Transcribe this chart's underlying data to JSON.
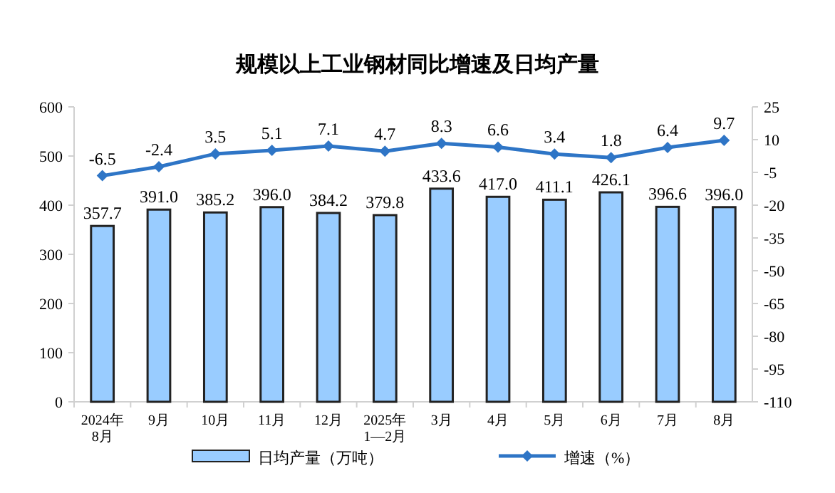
{
  "chart_data": {
    "type": "bar",
    "title": "规模以上工业钢材同比增速及日均产量",
    "categories": [
      "2024年\n8月",
      "9月",
      "10月",
      "11月",
      "12月",
      "2025年\n1—2月",
      "3月",
      "4月",
      "5月",
      "6月",
      "7月",
      "8月"
    ],
    "series": [
      {
        "name": "日均产量（万吨）",
        "color": "#99ccff",
        "values": [
          357.7,
          391.0,
          385.2,
          396.0,
          384.2,
          379.8,
          433.6,
          417.0,
          411.1,
          426.1,
          396.6,
          396.0
        ],
        "value_labels": [
          "357.7",
          "391.0",
          "385.2",
          "396.0",
          "384.2",
          "379.8",
          "433.6",
          "417.0",
          "411.1",
          "426.1",
          "396.6",
          "396.0"
        ]
      },
      {
        "name": "增速（%）",
        "type": "line",
        "axis": "y2",
        "color": "#2e75c6",
        "marker": "diamond",
        "values": [
          -6.5,
          -2.4,
          3.5,
          5.1,
          7.1,
          4.7,
          8.3,
          6.6,
          3.4,
          1.8,
          6.4,
          9.7
        ],
        "value_labels": [
          "-6.5",
          "-2.4",
          "3.5",
          "5.1",
          "7.1",
          "4.7",
          "8.3",
          "6.6",
          "3.4",
          "1.8",
          "6.4",
          "9.7"
        ]
      }
    ],
    "ylim": [
      0,
      600
    ],
    "yticks": [
      0,
      100,
      200,
      300,
      400,
      500,
      600
    ],
    "y2lim": [
      -110,
      25
    ],
    "y2ticks": [
      -110,
      -95,
      -80,
      -65,
      -50,
      -35,
      -20,
      -5,
      10,
      25
    ],
    "legend": "bottom"
  }
}
